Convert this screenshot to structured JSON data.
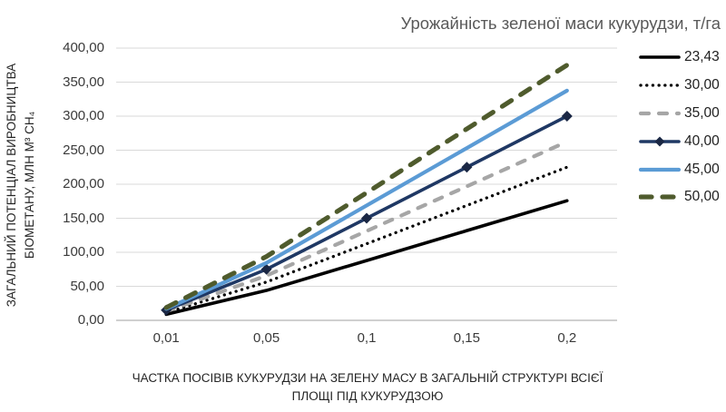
{
  "title": "Урожайність зеленої маси кукурудзи, т/га",
  "y_axis_title_line1": "ЗАГАЛЬНИЙ ПОТЕНЦІАЛ ВИРОБНИЦТВА",
  "y_axis_title_line2": "БІОМЕТАНУ, МЛН М³ СН₄",
  "x_axis_title_line1": "ЧАСТКА ПОСІВІВ КУКУРУДЗИ НА ЗЕЛЕНУ МАСУ В ЗАГАЛЬНІЙ СТРУКТУРІ ВСІЄЇ",
  "x_axis_title_line2": "ПЛОЩІ ПІД КУКУРУДЗОЮ",
  "colors": {
    "gridline": "#d9d9d9",
    "axis_line": "#b3b3b3",
    "title_text": "#595959",
    "axis_title_text": "#262626",
    "tick_text": "#3a3a3a"
  },
  "chart_data": {
    "type": "line",
    "title": "Урожайність зеленої маси кукурудзи, т/га",
    "xlabel": "ЧАСТКА ПОСІВІВ КУКУРУДЗИ НА ЗЕЛЕНУ МАСУ В ЗАГАЛЬНІЙ СТРУКТУРІ ВСІЄЇ ПЛОЩІ ПІД КУКУРУДЗОЮ",
    "ylabel": "ЗАГАЛЬНИЙ ПОТЕНЦІАЛ ВИРОБНИЦТВА БІОМЕТАНУ, МЛН М³ СН₄",
    "legend_title_meaning": "Урожайність зеленої маси кукурудзи, т/га",
    "x_axis_type": "category",
    "x": [
      0.01,
      0.05,
      0.1,
      0.15,
      0.2
    ],
    "x_tick_labels": [
      "0,01",
      "0,05",
      "0,1",
      "0,15",
      "0,2"
    ],
    "y_tick_labels": [
      "0,00",
      "50,00",
      "100,00",
      "150,00",
      "200,00",
      "250,00",
      "300,00",
      "350,00",
      "400,00"
    ],
    "ylim": [
      0,
      400
    ],
    "grid": "horizontal",
    "legend_position": "right",
    "series": [
      {
        "name": "23,43",
        "values": [
          8.79,
          43.93,
          87.86,
          131.79,
          175.73
        ],
        "color": "#000000",
        "dash": "solid",
        "width": 3.6,
        "marker": "none"
      },
      {
        "name": "30,00",
        "values": [
          11.25,
          56.25,
          112.5,
          168.75,
          225.0
        ],
        "color": "#000000",
        "dash": "dot",
        "width": 3.3,
        "marker": "none"
      },
      {
        "name": "35,00",
        "values": [
          13.13,
          65.63,
          131.25,
          196.88,
          262.5
        ],
        "color": "#a6a6a6",
        "dash": "dash",
        "width": 4.2,
        "marker": "none"
      },
      {
        "name": "40,00",
        "values": [
          15.0,
          75.0,
          150.0,
          225.0,
          300.0
        ],
        "color": "#1f3864",
        "dash": "solid",
        "width": 3.6,
        "marker": "diamond",
        "marker_color": "#1a2744"
      },
      {
        "name": "45,00",
        "values": [
          16.88,
          84.38,
          168.75,
          253.13,
          337.5
        ],
        "color": "#5b9bd5",
        "dash": "solid",
        "width": 4.2,
        "marker": "none"
      },
      {
        "name": "50,00",
        "values": [
          18.75,
          93.75,
          187.5,
          281.25,
          375.0
        ],
        "color": "#4f5b2d",
        "dash": "long-dash",
        "width": 5.2,
        "marker": "none"
      }
    ]
  }
}
